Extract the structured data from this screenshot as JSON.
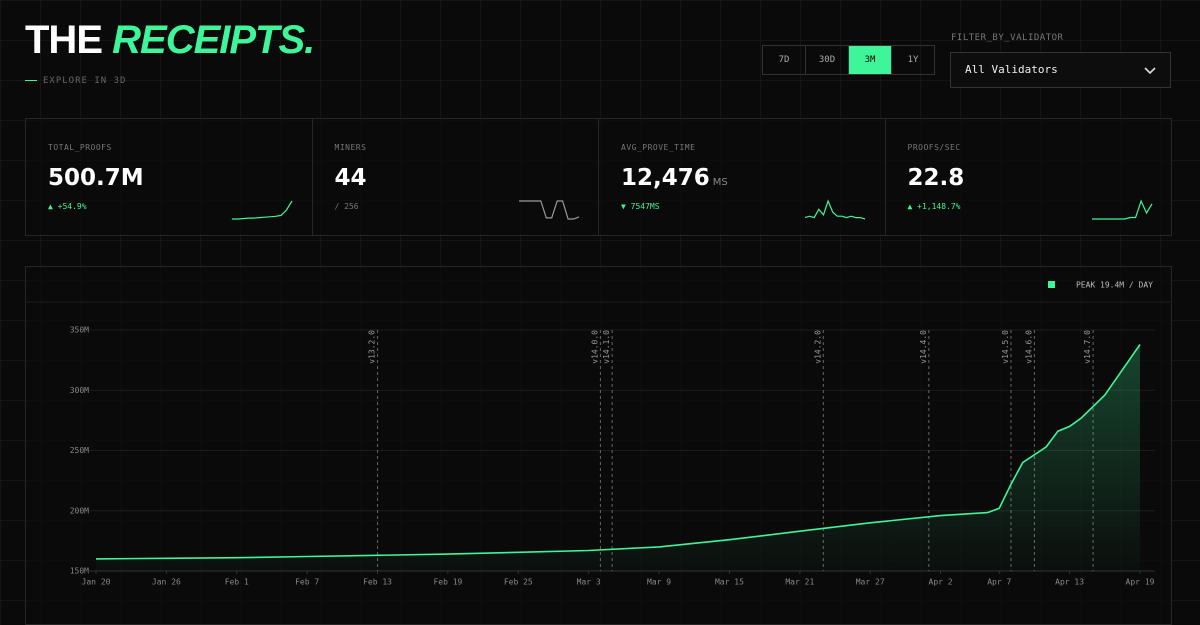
{
  "header": {
    "title_plain": "THE",
    "title_accent": "RECEIPTS.",
    "link": "EXPLORE IN 3D"
  },
  "range": {
    "options": [
      "7D",
      "30D",
      "3M",
      "1Y"
    ],
    "active": "3M"
  },
  "filter": {
    "label": "FILTER_BY_VALIDATOR",
    "value": "All Validators"
  },
  "stats": [
    {
      "label": "TOTAL_PROOFS",
      "value": "500.7M",
      "note": "▲ +54.9%",
      "note_color": "#3ef59a",
      "spark_color": "#3ef59a",
      "spark": [
        10,
        10,
        10.5,
        11,
        11,
        11.5,
        12,
        12.5,
        13,
        14,
        20,
        30
      ]
    },
    {
      "label": "MINERS",
      "value": "44",
      "note": "/ 256",
      "note_color": "#777777",
      "spark_color": "#9a9a9a",
      "spark": [
        38,
        38,
        38,
        38,
        38,
        6,
        6,
        38,
        38,
        4,
        4,
        8
      ]
    },
    {
      "label": "AVG_PROVE_TIME",
      "value": "12,476",
      "unit": "MS",
      "note": "▼ 7547MS",
      "note_color": "#3ef59a",
      "spark_color": "#3ef59a",
      "spark": [
        2,
        3,
        2,
        8,
        4,
        14,
        6,
        3,
        3,
        2,
        3,
        2,
        2,
        1
      ]
    },
    {
      "label": "PROOFS/SEC",
      "value": "22.8",
      "note": "▲ +1,148.7%",
      "note_color": "#3ef59a",
      "spark_color": "#3ef59a",
      "spark": [
        2,
        2,
        2,
        2,
        2,
        2,
        2,
        3,
        3,
        14,
        6,
        12
      ]
    }
  ],
  "chart_data": {
    "type": "line",
    "legend": "PEAK 19.4M / DAY",
    "x": [
      "Jan 20",
      "Jan 26",
      "Feb 1",
      "Feb 7",
      "Feb 13",
      "Feb 19",
      "Feb 25",
      "Mar 3",
      "Mar 9",
      "Mar 15",
      "Mar 21",
      "Mar 27",
      "Apr 2",
      "Apr 6",
      "Apr 7",
      "Apr 8",
      "Apr 9",
      "Apr 11",
      "Apr 12",
      "Apr 13",
      "Apr 14",
      "Apr 16",
      "Apr 19"
    ],
    "series": [
      {
        "color": "#3ef59a",
        "values": [
          160,
          160.5,
          161,
          162,
          163,
          164,
          165.5,
          167,
          170,
          176,
          183,
          190,
          196,
          198.5,
          202,
          222,
          240,
          253,
          266,
          270,
          277,
          296,
          338
        ]
      }
    ],
    "xlim": [
      "Jan 20",
      "Apr 19"
    ],
    "xticks": [
      "Jan 20",
      "Jan 26",
      "Feb 1",
      "Feb 7",
      "Feb 13",
      "Feb 19",
      "Feb 25",
      "Mar 3",
      "Mar 9",
      "Mar 15",
      "Mar 21",
      "Mar 27",
      "Apr 2",
      "Apr 7",
      "Apr 13",
      "Apr 19"
    ],
    "ylim": [
      150,
      350
    ],
    "yticks": [
      {
        "value": 150,
        "label": "150M"
      },
      {
        "value": 200,
        "label": "200M"
      },
      {
        "value": 250,
        "label": "250M"
      },
      {
        "value": 300,
        "label": "300M"
      },
      {
        "value": 350,
        "label": "350M"
      }
    ],
    "grid": true,
    "annotations": [
      {
        "label": "v13.2.0",
        "x": "Feb 13"
      },
      {
        "label": "v14.0.0",
        "x": "Mar 4"
      },
      {
        "label": "v14.1.0",
        "x": "Mar 5"
      },
      {
        "label": "v14.2.0",
        "x": "Mar 23"
      },
      {
        "label": "v14.4.0",
        "x": "Apr 1"
      },
      {
        "label": "v14.5.0",
        "x": "Apr 8"
      },
      {
        "label": "v14.6.0",
        "x": "Apr 10"
      },
      {
        "label": "v14.7.0",
        "x": "Apr 15"
      }
    ]
  }
}
